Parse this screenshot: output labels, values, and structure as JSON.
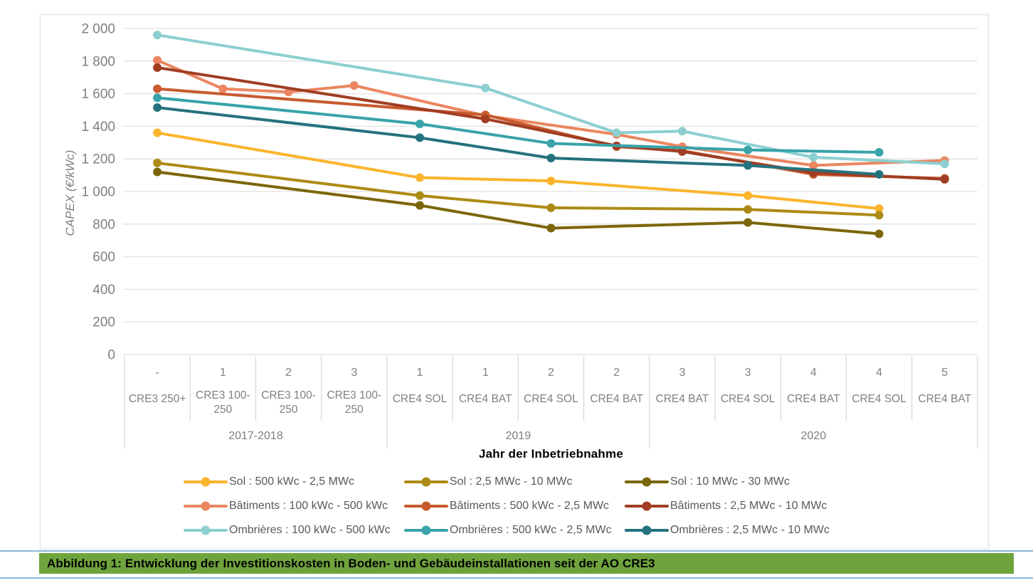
{
  "figure": {
    "caption": "Abbildung 1: Entwicklung der Investitionskosten in Boden- und Gebäudeinstallationen seit der AO CRE3",
    "caption_bg": "#6FA43D",
    "rule_color": "#8EB4DC"
  },
  "chart_data": {
    "type": "line",
    "title": "",
    "ylabel": "CAPEX (€/kWc)",
    "xlabel": "Jahr der Inbetriebnahme",
    "ylim": [
      0,
      2000
    ],
    "ytick_step": 200,
    "ytick_labels": [
      "0",
      "200",
      "400",
      "600",
      "800",
      "1 000",
      "1 200",
      "1 400",
      "1 600",
      "1 800",
      "2 000"
    ],
    "grid": true,
    "legend_position": "bottom",
    "categories": [
      {
        "period": "-",
        "scheme": "CRE3 250+"
      },
      {
        "period": "1",
        "scheme": "CRE3 100-250"
      },
      {
        "period": "2",
        "scheme": "CRE3 100-250"
      },
      {
        "period": "3",
        "scheme": "CRE3 100-250"
      },
      {
        "period": "1",
        "scheme": "CRE4 SOL"
      },
      {
        "period": "1",
        "scheme": "CRE4 BAT"
      },
      {
        "period": "2",
        "scheme": "CRE4 SOL"
      },
      {
        "period": "2",
        "scheme": "CRE4 BAT"
      },
      {
        "period": "3",
        "scheme": "CRE4 BAT"
      },
      {
        "period": "3",
        "scheme": "CRE4 SOL"
      },
      {
        "period": "4",
        "scheme": "CRE4 BAT"
      },
      {
        "period": "4",
        "scheme": "CRE4 SOL"
      },
      {
        "period": "5",
        "scheme": "CRE4 BAT"
      }
    ],
    "year_groups": [
      {
        "label": "2017-2018",
        "span": 4
      },
      {
        "label": "2019",
        "span": 4
      },
      {
        "label": "2020",
        "span": 5
      }
    ],
    "series": [
      {
        "name": "Sol : 500 kWc - 2,5 MWc",
        "color": "#FBB42C",
        "values": [
          1360,
          null,
          null,
          null,
          1085,
          null,
          1065,
          null,
          null,
          975,
          null,
          895,
          null
        ]
      },
      {
        "name": "Sol : 2,5 MWc - 10 MWc",
        "color": "#AC8B15",
        "values": [
          1175,
          null,
          null,
          null,
          975,
          null,
          900,
          null,
          null,
          890,
          null,
          855,
          null
        ]
      },
      {
        "name": "Sol : 10 MWc - 30 MWc",
        "color": "#7C660B",
        "values": [
          1120,
          null,
          null,
          null,
          915,
          null,
          775,
          null,
          null,
          810,
          null,
          740,
          null
        ]
      },
      {
        "name": "Bâtiments : 100 kWc - 500 kWc",
        "color": "#EB8660",
        "values": [
          1805,
          1630,
          1610,
          1650,
          null,
          1465,
          null,
          1350,
          1275,
          null,
          1160,
          null,
          1190
        ]
      },
      {
        "name": "Bâtiments : 500 kWc - 2,5 MWc",
        "color": "#C85A2E",
        "values": [
          1630,
          null,
          null,
          null,
          null,
          1470,
          null,
          1275,
          1250,
          null,
          1105,
          null,
          1080
        ]
      },
      {
        "name": "Bâtiments : 2,5 MWc - 10 MWc",
        "color": "#A03D22",
        "values": [
          1760,
          null,
          null,
          null,
          null,
          1445,
          null,
          1280,
          1245,
          null,
          1115,
          null,
          1075
        ]
      },
      {
        "name": "Ombrières : 100 kWc - 500 kWc",
        "color": "#8DCFD0",
        "values": [
          1960,
          null,
          null,
          null,
          null,
          1635,
          null,
          1360,
          1370,
          null,
          1210,
          null,
          1170
        ]
      },
      {
        "name": "Ombrières : 500 kWc - 2,5 MWc",
        "color": "#38A3A9",
        "values": [
          1575,
          null,
          null,
          null,
          1415,
          null,
          1295,
          null,
          null,
          1255,
          null,
          1240,
          null
        ]
      },
      {
        "name": "Ombrières : 2,5 MWc - 10 MWc",
        "color": "#24727D",
        "values": [
          1515,
          null,
          null,
          null,
          1330,
          null,
          1205,
          null,
          null,
          1160,
          null,
          1105,
          null
        ]
      }
    ]
  }
}
